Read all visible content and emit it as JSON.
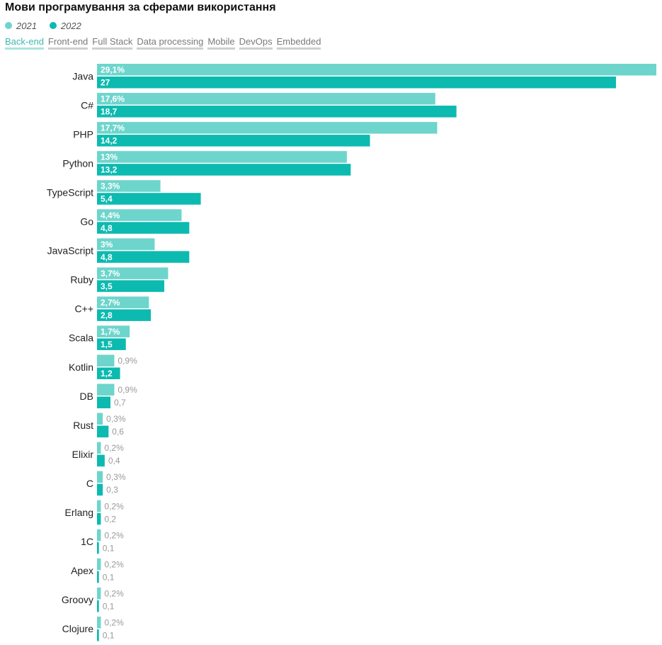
{
  "title": "Мови програмування за сферами використання",
  "legend": [
    {
      "label": "2021",
      "color": "#6dd5cc"
    },
    {
      "label": "2022",
      "color": "#0cbab0"
    }
  ],
  "tabs": [
    "Back-end",
    "Front-end",
    "Full Stack",
    "Data processing",
    "Mobile",
    "DevOps",
    "Embedded"
  ],
  "active_tab": 0,
  "chart_data": {
    "type": "bar",
    "orientation": "horizontal",
    "categories": [
      "Java",
      "C#",
      "PHP",
      "Python",
      "TypeScript",
      "Go",
      "JavaScript",
      "Ruby",
      "C++",
      "Scala",
      "Kotlin",
      "DB",
      "Rust",
      "Elixir",
      "C",
      "Erlang",
      "1C",
      "Apex",
      "Groovy",
      "Clojure"
    ],
    "series": [
      {
        "name": "2021",
        "color": "#6dd5cc",
        "values": [
          29.1,
          17.6,
          17.7,
          13,
          3.3,
          4.4,
          3,
          3.7,
          2.7,
          1.7,
          0.9,
          0.9,
          0.3,
          0.2,
          0.3,
          0.2,
          0.2,
          0.2,
          0.2,
          0.2
        ],
        "labels": [
          "29,1%",
          "17,6%",
          "17,7%",
          "13%",
          "3,3%",
          "4,4%",
          "3%",
          "3,7%",
          "2,7%",
          "1,7%",
          "0,9%",
          "0,9%",
          "0,3%",
          "0,2%",
          "0,3%",
          "0,2%",
          "0,2%",
          "0,2%",
          "0,2%",
          "0,2%"
        ]
      },
      {
        "name": "2022",
        "color": "#0cbab0",
        "values": [
          27,
          18.7,
          14.2,
          13.2,
          5.4,
          4.8,
          4.8,
          3.5,
          2.8,
          1.5,
          1.2,
          0.7,
          0.6,
          0.4,
          0.3,
          0.2,
          0.1,
          0.1,
          0.1,
          0.1
        ],
        "labels": [
          "27",
          "18,7",
          "14,2",
          "13,2",
          "5,4",
          "4,8",
          "4,8",
          "3,5",
          "2,8",
          "1,5",
          "1,2",
          "0,7",
          "0,6",
          "0,4",
          "0,3",
          "0,2",
          "0,1",
          "0,1",
          "0,1",
          "0,1"
        ]
      }
    ],
    "xlim": [
      0,
      29.1
    ],
    "grid": false
  }
}
